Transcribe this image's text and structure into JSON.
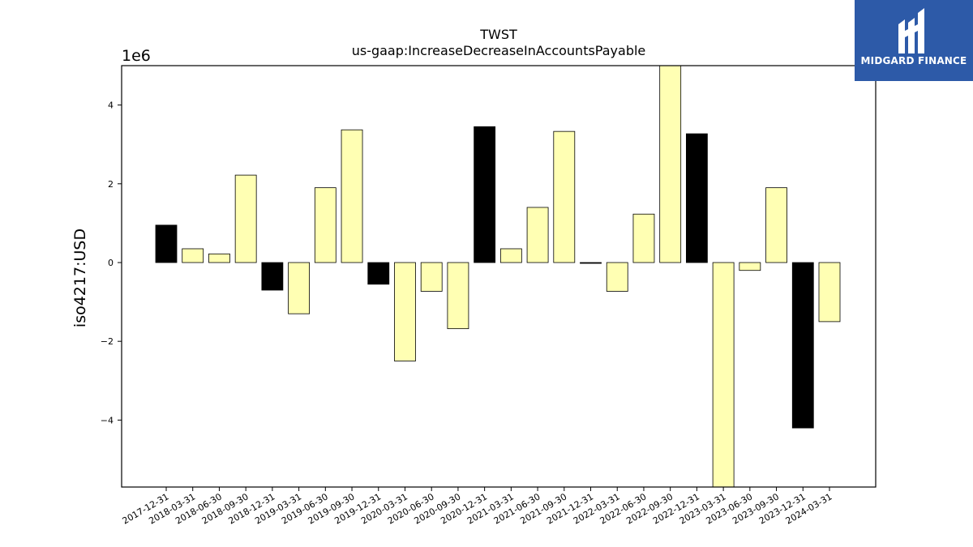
{
  "chart_data": {
    "type": "bar",
    "title": "TWST",
    "subtitle": "us-gaap:IncreaseDecreaseInAccountsPayable",
    "ylabel": "iso4217:USD",
    "xlabel": "",
    "y_offset_label": "1e6",
    "ylim": [
      -5.7,
      5.0
    ],
    "yticks": [
      -4,
      -2,
      0,
      2,
      4
    ],
    "ytick_labels": [
      "−4",
      "−2",
      "0",
      "2",
      "4"
    ],
    "categories": [
      "2017-12-31",
      "2018-03-31",
      "2018-06-30",
      "2018-09-30",
      "2018-12-31",
      "2019-03-31",
      "2019-06-30",
      "2019-09-30",
      "2019-12-31",
      "2020-03-31",
      "2020-06-30",
      "2020-09-30",
      "2020-12-31",
      "2021-03-31",
      "2021-06-30",
      "2021-09-30",
      "2021-12-31",
      "2022-03-31",
      "2022-06-30",
      "2022-09-30",
      "2022-12-31",
      "2023-03-31",
      "2023-06-30",
      "2023-09-30",
      "2023-12-31",
      "2024-03-31"
    ],
    "values": [
      0.95,
      0.35,
      0.22,
      2.22,
      -0.7,
      -1.3,
      1.9,
      3.37,
      -0.55,
      -2.5,
      -0.73,
      -1.68,
      3.45,
      0.35,
      1.4,
      3.33,
      -0.02,
      -0.73,
      1.23,
      5.0,
      3.27,
      -5.7,
      -0.2,
      1.9,
      -4.2,
      -1.5
    ],
    "bar_colors": [
      "#000000",
      "#ffffb3",
      "#ffffb3",
      "#ffffb3",
      "#000000",
      "#ffffb3",
      "#ffffb3",
      "#ffffb3",
      "#000000",
      "#ffffb3",
      "#ffffb3",
      "#ffffb3",
      "#000000",
      "#ffffb3",
      "#ffffb3",
      "#ffffb3",
      "#000000",
      "#ffffb3",
      "#ffffb3",
      "#ffffb3",
      "#000000",
      "#ffffb3",
      "#ffffb3",
      "#ffffb3",
      "#000000",
      "#ffffb3"
    ],
    "grid": false,
    "legend": "none"
  },
  "logo": {
    "text": "MIDGARD FINANCE",
    "background": "#2d5aa8"
  }
}
